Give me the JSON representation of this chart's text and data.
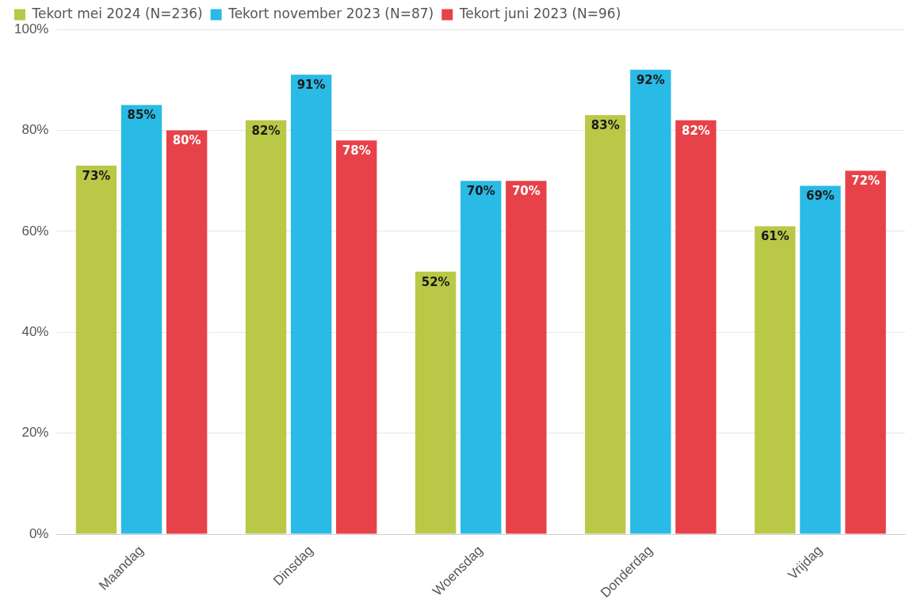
{
  "chart_data": {
    "type": "bar",
    "categories": [
      "Maandag",
      "Dinsdag",
      "Woensdag",
      "Donderdag",
      "Vrijdag"
    ],
    "series": [
      {
        "name": "Tekort mei 2024 (N=236)",
        "color": "#b5c43b",
        "values": [
          73,
          82,
          52,
          83,
          61
        ],
        "value_labels": [
          "73%",
          "82%",
          "52%",
          "83%",
          "61%"
        ]
      },
      {
        "name": "Tekort november 2023 (N=87)",
        "color": "#1ab5e3",
        "values": [
          85,
          91,
          70,
          92,
          69
        ],
        "value_labels": [
          "85%",
          "91%",
          "70%",
          "92%",
          "69%"
        ]
      },
      {
        "name": "Tekort juni 2023 (N=96)",
        "color": "#e5343c",
        "values": [
          80,
          78,
          70,
          82,
          72
        ],
        "value_labels": [
          "80%",
          "78%",
          "70%",
          "82%",
          "72%"
        ]
      }
    ],
    "ylim": [
      0,
      100
    ],
    "yticks": [
      {
        "value": 0,
        "label": "0%"
      },
      {
        "value": 20,
        "label": "20%"
      },
      {
        "value": 40,
        "label": "40%"
      },
      {
        "value": 60,
        "label": "60%"
      },
      {
        "value": 80,
        "label": "80%"
      },
      {
        "value": 100,
        "label": "100%"
      }
    ],
    "grid": "y",
    "legend": "top left"
  }
}
